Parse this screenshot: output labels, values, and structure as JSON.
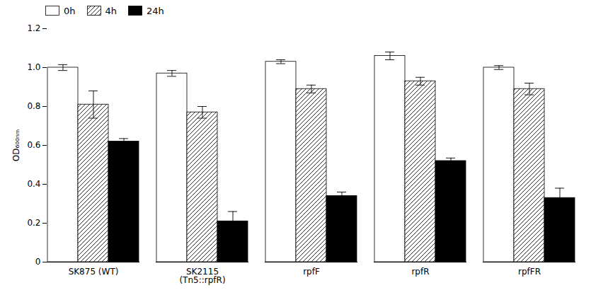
{
  "chart_data": {
    "type": "bar",
    "categories": [
      "SK875 (WT)",
      "SK2115\n(Tn5::rpfR)",
      "rpfF",
      "rpfR",
      "rpfFR"
    ],
    "series": [
      {
        "name": "0h",
        "color": "white",
        "values": [
          1.0,
          0.97,
          1.03,
          1.06,
          1.0
        ],
        "errors": [
          0.015,
          0.015,
          0.01,
          0.02,
          0.01
        ]
      },
      {
        "name": "4h",
        "color": "white",
        "values": [
          0.81,
          0.77,
          0.89,
          0.93,
          0.89
        ],
        "errors": [
          0.07,
          0.03,
          0.02,
          0.02,
          0.03
        ]
      },
      {
        "name": "24h",
        "color": "black",
        "values": [
          0.62,
          0.21,
          0.34,
          0.52,
          0.33
        ],
        "errors": [
          0.015,
          0.05,
          0.02,
          0.015,
          0.05
        ]
      }
    ],
    "ylabel": "OD₆₀₀ₙₘ",
    "ylim": [
      0,
      1.2
    ],
    "yticks": [
      0,
      0.2,
      0.4,
      0.6,
      0.8,
      {
        "value": 1.0,
        "label": "1.0"
      },
      1.2
    ],
    "grid": false,
    "legend": "upper left"
  }
}
